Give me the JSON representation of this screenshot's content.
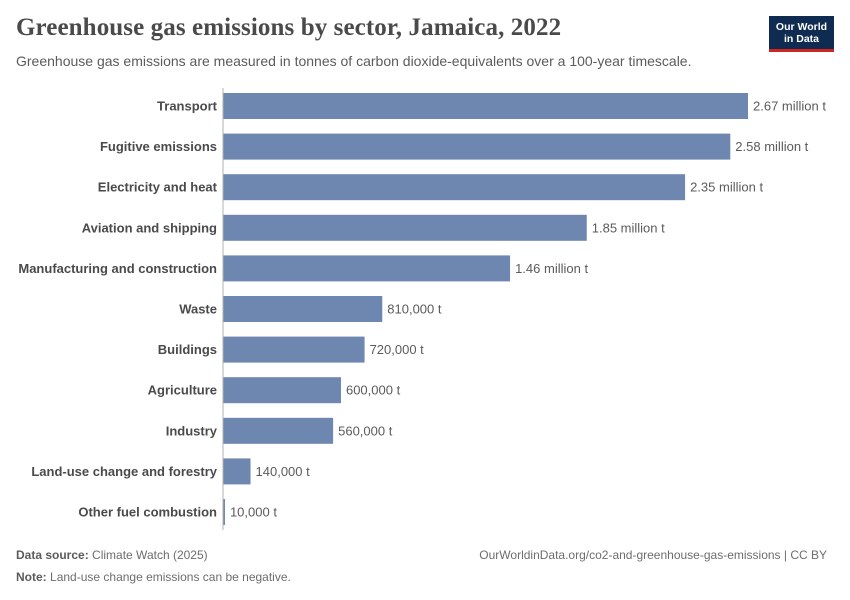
{
  "header": {
    "title": "Greenhouse gas emissions by sector, Jamaica, 2022",
    "subtitle": "Greenhouse gas emissions are measured in tonnes of carbon dioxide-equivalents over a 100-year timescale.",
    "logo_line1": "Our World",
    "logo_line2": "in Data"
  },
  "chart_data": {
    "type": "bar",
    "orientation": "horizontal",
    "title": "Greenhouse gas emissions by sector, Jamaica, 2022",
    "unit": "tonnes CO2-equivalent",
    "categories": [
      "Transport",
      "Fugitive emissions",
      "Electricity and heat",
      "Aviation and shipping",
      "Manufacturing and construction",
      "Waste",
      "Buildings",
      "Agriculture",
      "Industry",
      "Land-use change and forestry",
      "Other fuel combustion"
    ],
    "values": [
      2670000,
      2580000,
      2350000,
      1850000,
      1460000,
      810000,
      720000,
      600000,
      560000,
      140000,
      10000
    ],
    "value_labels": [
      "2.67 million t",
      "2.58 million t",
      "2.35 million t",
      "1.85 million t",
      "1.46 million t",
      "810,000 t",
      "720,000 t",
      "600,000 t",
      "560,000 t",
      "140,000 t",
      "10,000 t"
    ],
    "xlim": [
      0,
      2670000
    ],
    "bar_color": "#6d87b1"
  },
  "footer": {
    "source_label": "Data source:",
    "source_text": "Climate Watch (2025)",
    "url": "OurWorldinData.org/co2-and-greenhouse-gas-emissions | CC BY",
    "note_label": "Note:",
    "note_text": "Land-use change emissions can be negative."
  }
}
